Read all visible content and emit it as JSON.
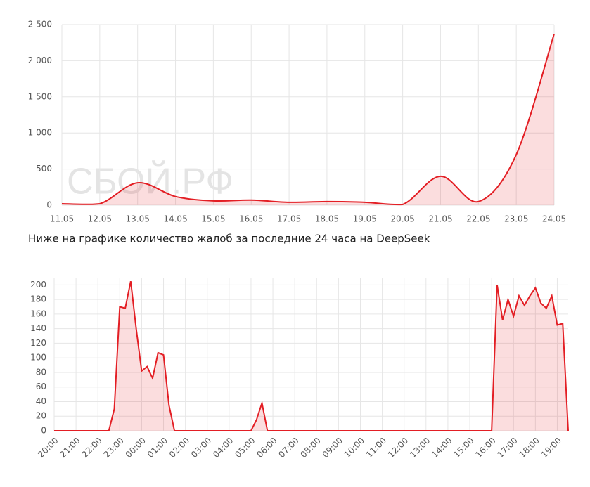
{
  "caption": "Ниже на графике количество жалоб за последние 24 часа на DeepSeek",
  "chart_data": [
    {
      "type": "line",
      "watermark": "СБОЙ.РФ",
      "color": "#e31e24",
      "grid": true,
      "categories": [
        "11.05",
        "12.05",
        "13.05",
        "14.05",
        "15.05",
        "16.05",
        "17.05",
        "18.05",
        "19.05",
        "20.05",
        "21.05",
        "22.05",
        "23.05",
        "24.05"
      ],
      "values": [
        20,
        20,
        310,
        120,
        60,
        70,
        40,
        50,
        40,
        10,
        400,
        50,
        700,
        2370
      ],
      "ylim": [
        0,
        2500
      ],
      "yticks": [
        0,
        500,
        {
          "value": 1000,
          "label": "1 000"
        },
        {
          "value": 1500,
          "label": "1 500"
        },
        {
          "value": 2000,
          "label": "2 000"
        },
        {
          "value": 2500,
          "label": "2 500"
        }
      ]
    },
    {
      "type": "line",
      "color": "#e31e24",
      "grid": true,
      "categories": [
        "20:00",
        null,
        null,
        null,
        "21:00",
        null,
        null,
        null,
        "22:00",
        null,
        null,
        null,
        "23:00",
        null,
        null,
        null,
        "00:00",
        null,
        null,
        null,
        "01:00",
        null,
        null,
        null,
        "02:00",
        null,
        null,
        null,
        "03:00",
        null,
        null,
        null,
        "04:00",
        null,
        null,
        null,
        "05:00",
        null,
        null,
        null,
        "06:00",
        null,
        null,
        null,
        "07:00",
        null,
        null,
        null,
        "08:00",
        null,
        null,
        null,
        "09:00",
        null,
        null,
        null,
        "10:00",
        null,
        null,
        null,
        "11:00",
        null,
        null,
        null,
        "12:00",
        null,
        null,
        null,
        "13:00",
        null,
        null,
        null,
        "14:00",
        null,
        null,
        null,
        "15:00",
        null,
        null,
        null,
        "16:00",
        null,
        null,
        null,
        "17:00",
        null,
        null,
        null,
        "18:00",
        null,
        null,
        null,
        "19:00",
        null,
        null
      ],
      "values": [
        0,
        0,
        0,
        0,
        0,
        0,
        0,
        0,
        0,
        0,
        0,
        30,
        170,
        168,
        205,
        140,
        82,
        88,
        72,
        107,
        104,
        35,
        0,
        0,
        0,
        0,
        0,
        0,
        0,
        0,
        0,
        0,
        0,
        0,
        0,
        0,
        0,
        15,
        38,
        0,
        0,
        0,
        0,
        0,
        0,
        0,
        0,
        0,
        0,
        0,
        0,
        0,
        0,
        0,
        0,
        0,
        0,
        0,
        0,
        0,
        0,
        0,
        0,
        0,
        0,
        0,
        0,
        0,
        0,
        0,
        0,
        0,
        0,
        0,
        0,
        0,
        0,
        0,
        0,
        0,
        0,
        200,
        152,
        180,
        157,
        185,
        172,
        185,
        196,
        175,
        168,
        185,
        145,
        147,
        0
      ],
      "ylim": [
        0,
        210
      ],
      "yticks": [
        0,
        20,
        40,
        60,
        80,
        100,
        120,
        140,
        160,
        180,
        200
      ]
    }
  ]
}
